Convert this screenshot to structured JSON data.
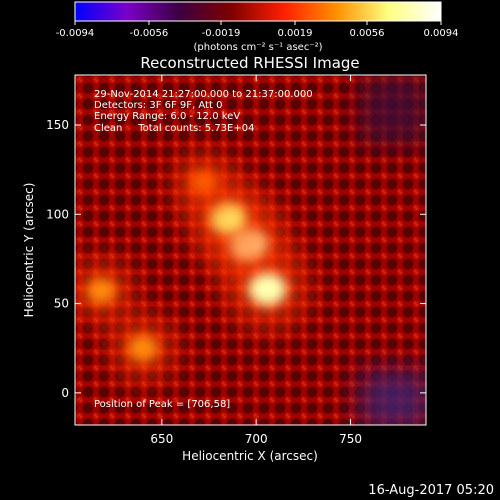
{
  "chart_data": {
    "type": "heatmap",
    "title": "Reconstructed RHESSI Image",
    "xlabel": "Heliocentric X (arcsec)",
    "ylabel": "Heliocentric Y (arcsec)",
    "xlim": [
      604,
      790
    ],
    "ylim": [
      -18,
      178
    ],
    "xticks": [
      "650",
      "700",
      "750"
    ],
    "xtick_values": [
      650,
      700,
      750
    ],
    "yticks": [
      "0",
      "50",
      "100",
      "150"
    ],
    "ytick_values": [
      0,
      50,
      100,
      150
    ],
    "colorbar": {
      "ticks": [
        "-0.0094",
        "-0.0056",
        "-0.0019",
        "0.0019",
        "0.0056",
        "0.0094"
      ],
      "tick_values": [
        -0.0094,
        -0.0056,
        -0.0019,
        0.0019,
        0.0056,
        0.0094
      ],
      "range": [
        -0.0094,
        0.0094
      ],
      "unit_label": "(photons cm⁻² s⁻¹ asec⁻²)",
      "colors": [
        "#0000ff",
        "#7a00c8",
        "#3c0040",
        "#800000",
        "#ff2000",
        "#ff9000",
        "#ffff80",
        "#ffffff"
      ]
    },
    "annotations": [
      "29-Nov-2014 21:27:00.000 to 21:37:00.000",
      "Detectors: 3F 6F 9F, Att 0",
      "Energy Range: 6.0 - 12.0 keV",
      "Clean     Total counts: 5.73E+04"
    ],
    "peak_label": "Position of Peak = [706,58]",
    "sources": [
      {
        "x": 696,
        "y": 83,
        "value": 0.0094
      },
      {
        "x": 706,
        "y": 58,
        "value": 0.0094
      },
      {
        "x": 685,
        "y": 98,
        "value": 0.0085
      },
      {
        "x": 618,
        "y": 57,
        "value": 0.0045
      },
      {
        "x": 640,
        "y": 25,
        "value": 0.005
      },
      {
        "x": 672,
        "y": 118,
        "value": 0.0035
      }
    ]
  },
  "timestamp": "16-Aug-2017 05:20"
}
